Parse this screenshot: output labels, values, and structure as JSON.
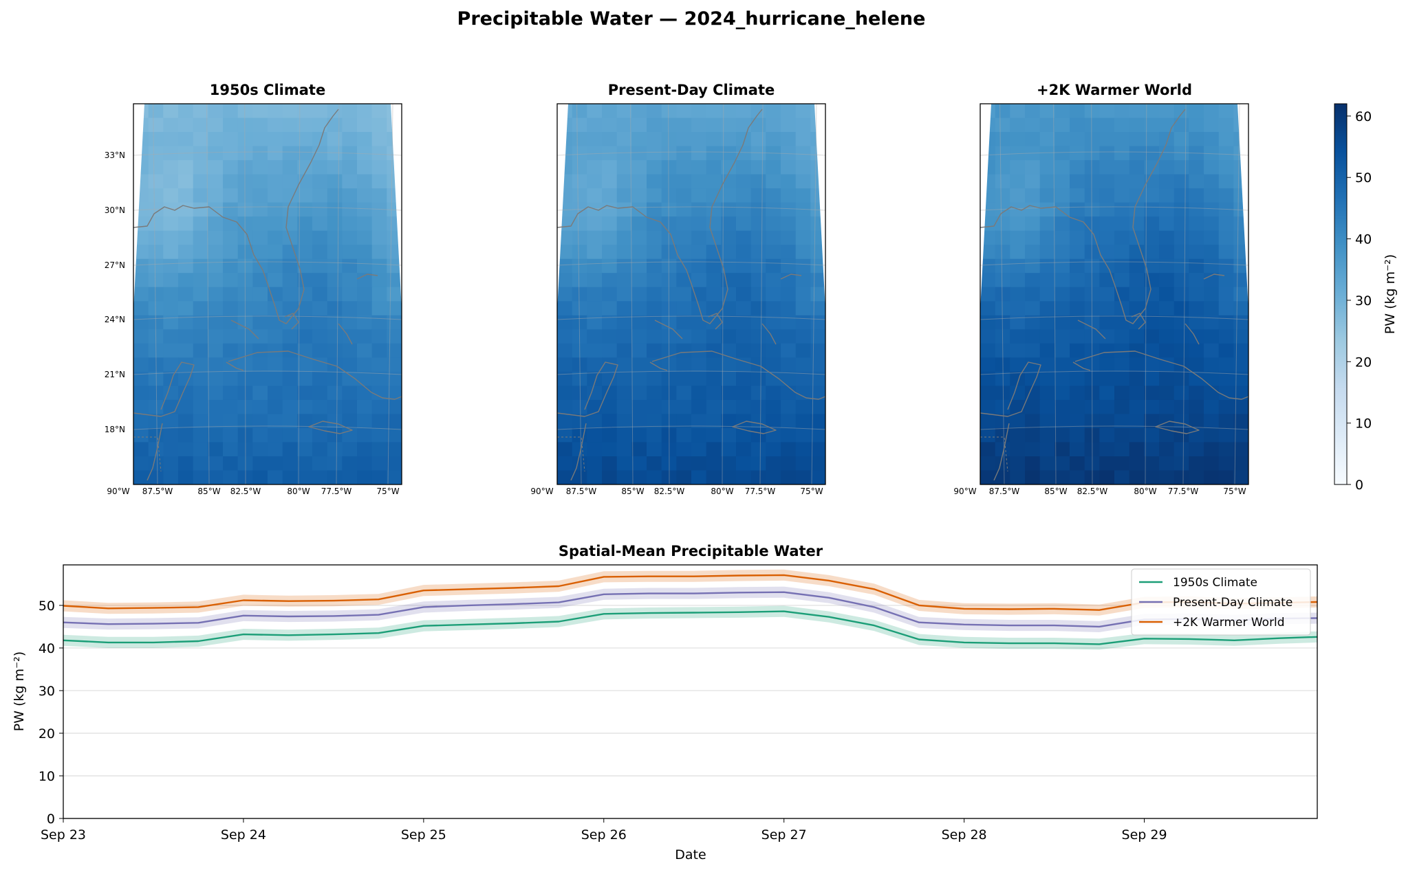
{
  "title": "Precipitable Water — 2024_hurricane_helene",
  "colors": {
    "blues_ramp": [
      "#f7fbff",
      "#deebf7",
      "#c6dbef",
      "#9ecae1",
      "#6baed6",
      "#4292c6",
      "#2171b5",
      "#08519c",
      "#08306b"
    ],
    "coastline": "#7a7a7a",
    "grid": "#dddddd",
    "series": [
      "#1b9e77",
      "#7570b3",
      "#d95f02"
    ]
  },
  "maps": {
    "lon_ticks": [
      "90°W",
      "87.5°W",
      "85°W",
      "82.5°W",
      "80°W",
      "77.5°W",
      "75°W"
    ],
    "lat_ticks": [
      "33°N",
      "30°N",
      "27°N",
      "24°N",
      "21°N",
      "18°N"
    ],
    "panels": [
      {
        "title": "1950s Climate",
        "mean_pw": 44
      },
      {
        "title": "Present-Day Climate",
        "mean_pw": 49
      },
      {
        "title": "+2K Warmer World",
        "mean_pw": 53
      }
    ],
    "colorbar": {
      "label": "PW (kg m⁻²)",
      "ticks": [
        "0",
        "10",
        "20",
        "30",
        "40",
        "50",
        "60"
      ],
      "vmin": 0,
      "vmax": 62
    }
  },
  "chart_data": {
    "type": "line",
    "title": "Spatial-Mean Precipitable Water",
    "xlabel": "Date",
    "ylabel": "PW (kg m⁻²)",
    "x_ticks": [
      "Sep 23",
      "Sep 24",
      "Sep 25",
      "Sep 26",
      "Sep 27",
      "Sep 28",
      "Sep 29"
    ],
    "x_days": [
      0,
      1,
      2,
      3,
      4,
      5,
      6
    ],
    "xlim_days": [
      0,
      6.96
    ],
    "y_ticks": [
      "0",
      "10",
      "20",
      "30",
      "40",
      "50"
    ],
    "ylim": [
      0,
      59.5
    ],
    "grid": "horizontal",
    "legend": "top-right",
    "band_halfwidth": 1.3,
    "series": [
      {
        "name": "1950s Climate",
        "color": "#1b9e77",
        "points": [
          [
            0,
            41.8
          ],
          [
            0.25,
            41.3
          ],
          [
            0.5,
            41.3
          ],
          [
            0.75,
            41.6
          ],
          [
            1,
            43.2
          ],
          [
            1.25,
            43.0
          ],
          [
            1.5,
            43.2
          ],
          [
            1.75,
            43.5
          ],
          [
            2,
            45.2
          ],
          [
            2.25,
            45.5
          ],
          [
            2.5,
            45.8
          ],
          [
            2.75,
            46.2
          ],
          [
            3,
            48.0
          ],
          [
            3.25,
            48.2
          ],
          [
            3.5,
            48.3
          ],
          [
            3.75,
            48.4
          ],
          [
            4,
            48.6
          ],
          [
            4.25,
            47.3
          ],
          [
            4.5,
            45.3
          ],
          [
            4.75,
            42.0
          ],
          [
            5,
            41.3
          ],
          [
            5.25,
            41.1
          ],
          [
            5.5,
            41.1
          ],
          [
            5.75,
            40.9
          ],
          [
            6,
            42.2
          ],
          [
            6.25,
            42.1
          ],
          [
            6.5,
            41.8
          ],
          [
            6.75,
            42.3
          ],
          [
            6.96,
            42.6
          ]
        ]
      },
      {
        "name": "Present-Day Climate",
        "color": "#7570b3",
        "points": [
          [
            0,
            46.0
          ],
          [
            0.25,
            45.6
          ],
          [
            0.5,
            45.7
          ],
          [
            0.75,
            45.9
          ],
          [
            1,
            47.6
          ],
          [
            1.25,
            47.4
          ],
          [
            1.5,
            47.5
          ],
          [
            1.75,
            47.8
          ],
          [
            2,
            49.6
          ],
          [
            2.25,
            50.0
          ],
          [
            2.5,
            50.3
          ],
          [
            2.75,
            50.7
          ],
          [
            3,
            52.6
          ],
          [
            3.25,
            52.8
          ],
          [
            3.5,
            52.8
          ],
          [
            3.75,
            53.0
          ],
          [
            4,
            53.1
          ],
          [
            4.25,
            51.8
          ],
          [
            4.5,
            49.6
          ],
          [
            4.75,
            46.0
          ],
          [
            5,
            45.5
          ],
          [
            5.25,
            45.3
          ],
          [
            5.5,
            45.3
          ],
          [
            5.75,
            45.0
          ],
          [
            6,
            46.7
          ],
          [
            6.25,
            46.8
          ],
          [
            6.5,
            46.5
          ],
          [
            6.75,
            46.9
          ],
          [
            6.96,
            47.0
          ]
        ]
      },
      {
        "name": "+2K Warmer World",
        "color": "#d95f02",
        "points": [
          [
            0,
            49.9
          ],
          [
            0.25,
            49.3
          ],
          [
            0.5,
            49.4
          ],
          [
            0.75,
            49.6
          ],
          [
            1,
            51.2
          ],
          [
            1.25,
            51.0
          ],
          [
            1.5,
            51.1
          ],
          [
            1.75,
            51.4
          ],
          [
            2,
            53.5
          ],
          [
            2.25,
            53.8
          ],
          [
            2.5,
            54.1
          ],
          [
            2.75,
            54.5
          ],
          [
            3,
            56.7
          ],
          [
            3.25,
            56.8
          ],
          [
            3.5,
            56.8
          ],
          [
            3.75,
            57.0
          ],
          [
            4,
            57.1
          ],
          [
            4.25,
            55.8
          ],
          [
            4.5,
            53.8
          ],
          [
            4.75,
            50.0
          ],
          [
            5,
            49.2
          ],
          [
            5.25,
            49.1
          ],
          [
            5.5,
            49.2
          ],
          [
            5.75,
            48.9
          ],
          [
            6,
            50.7
          ],
          [
            6.25,
            50.8
          ],
          [
            6.5,
            50.4
          ],
          [
            6.75,
            50.6
          ],
          [
            6.96,
            50.8
          ]
        ]
      }
    ]
  }
}
